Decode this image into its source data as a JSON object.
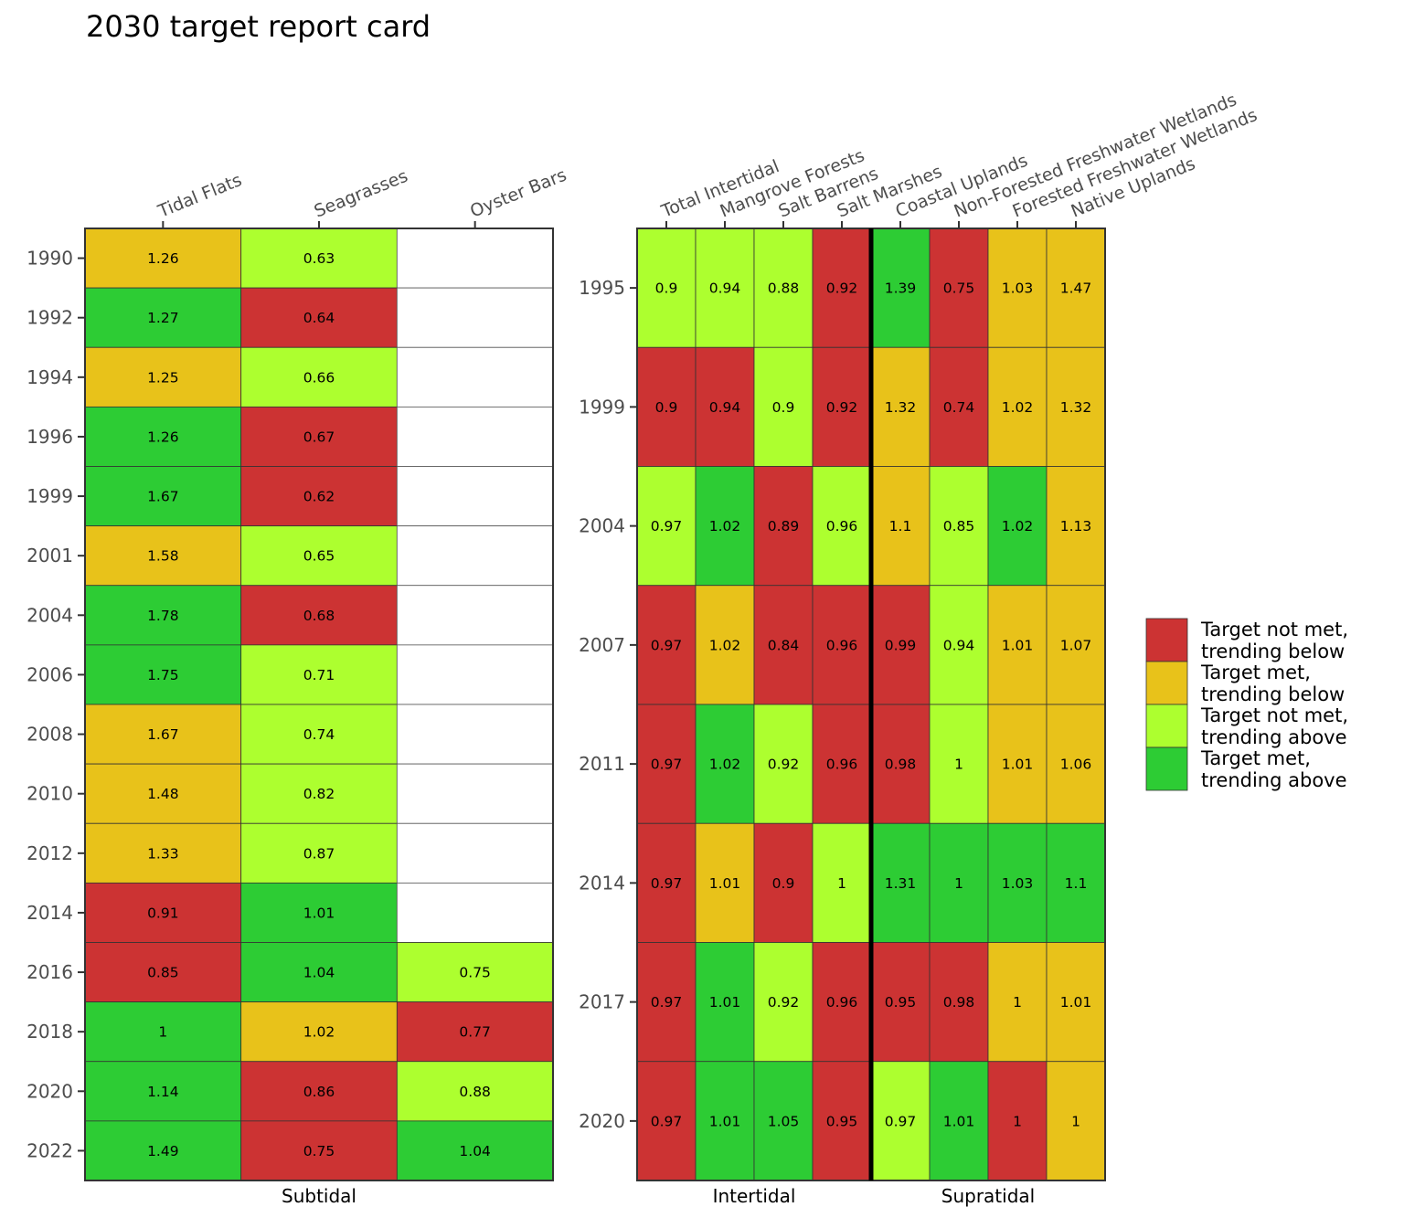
{
  "chart_data": {
    "type": "heatmap",
    "title": "2030 target report card",
    "status_colors": {
      "Target not met, trending below": "#cc3333",
      "Target met, trending below": "#e8c21a",
      "Target not met, trending above": "#adff2f",
      "Target met, trending above": "#2dcc34"
    },
    "legend": {
      "position": "right",
      "entries": [
        {
          "label_line1": "Target not met,",
          "label_line2": "trending below",
          "color": "#cc3333"
        },
        {
          "label_line1": "Target met,",
          "label_line2": "trending below",
          "color": "#e8c21a"
        },
        {
          "label_line1": "Target not met,",
          "label_line2": "trending above",
          "color": "#adff2f"
        },
        {
          "label_line1": "Target met,",
          "label_line2": "trending above",
          "color": "#2dcc34"
        }
      ]
    },
    "panels": [
      {
        "id": "subtidal",
        "xlabel": "Subtidal",
        "groups": [],
        "columns": [
          "Tidal Flats",
          "Seagrasses",
          "Oyster Bars"
        ],
        "rows": [
          "1990",
          "1992",
          "1994",
          "1996",
          "1999",
          "2001",
          "2004",
          "2006",
          "2008",
          "2010",
          "2012",
          "2014",
          "2016",
          "2018",
          "2020",
          "2022"
        ],
        "cells": [
          [
            {
              "v": "1.26",
              "c": "#e8c21a"
            },
            {
              "v": "0.63",
              "c": "#adff2f"
            },
            null
          ],
          [
            {
              "v": "1.27",
              "c": "#2dcc34"
            },
            {
              "v": "0.64",
              "c": "#cc3333"
            },
            null
          ],
          [
            {
              "v": "1.25",
              "c": "#e8c21a"
            },
            {
              "v": "0.66",
              "c": "#adff2f"
            },
            null
          ],
          [
            {
              "v": "1.26",
              "c": "#2dcc34"
            },
            {
              "v": "0.67",
              "c": "#cc3333"
            },
            null
          ],
          [
            {
              "v": "1.67",
              "c": "#2dcc34"
            },
            {
              "v": "0.62",
              "c": "#cc3333"
            },
            null
          ],
          [
            {
              "v": "1.58",
              "c": "#e8c21a"
            },
            {
              "v": "0.65",
              "c": "#adff2f"
            },
            null
          ],
          [
            {
              "v": "1.78",
              "c": "#2dcc34"
            },
            {
              "v": "0.68",
              "c": "#cc3333"
            },
            null
          ],
          [
            {
              "v": "1.75",
              "c": "#2dcc34"
            },
            {
              "v": "0.71",
              "c": "#adff2f"
            },
            null
          ],
          [
            {
              "v": "1.67",
              "c": "#e8c21a"
            },
            {
              "v": "0.74",
              "c": "#adff2f"
            },
            null
          ],
          [
            {
              "v": "1.48",
              "c": "#e8c21a"
            },
            {
              "v": "0.82",
              "c": "#adff2f"
            },
            null
          ],
          [
            {
              "v": "1.33",
              "c": "#e8c21a"
            },
            {
              "v": "0.87",
              "c": "#adff2f"
            },
            null
          ],
          [
            {
              "v": "0.91",
              "c": "#cc3333"
            },
            {
              "v": "1.01",
              "c": "#2dcc34"
            },
            null
          ],
          [
            {
              "v": "0.85",
              "c": "#cc3333"
            },
            {
              "v": "1.04",
              "c": "#2dcc34"
            },
            {
              "v": "0.75",
              "c": "#adff2f"
            }
          ],
          [
            {
              "v": "1",
              "c": "#2dcc34"
            },
            {
              "v": "1.02",
              "c": "#e8c21a"
            },
            {
              "v": "0.77",
              "c": "#cc3333"
            }
          ],
          [
            {
              "v": "1.14",
              "c": "#2dcc34"
            },
            {
              "v": "0.86",
              "c": "#cc3333"
            },
            {
              "v": "0.88",
              "c": "#adff2f"
            }
          ],
          [
            {
              "v": "1.49",
              "c": "#2dcc34"
            },
            {
              "v": "0.75",
              "c": "#cc3333"
            },
            {
              "v": "1.04",
              "c": "#2dcc34"
            }
          ]
        ]
      },
      {
        "id": "intertidal-supratidal",
        "xlabel": "",
        "groups": [
          {
            "label": "Intertidal",
            "span": 4
          },
          {
            "label": "Supratidal",
            "span": 4
          }
        ],
        "columns": [
          "Total Intertidal",
          "Mangrove Forests",
          "Salt Barrens",
          "Salt Marshes",
          "Coastal Uplands",
          "Non-Forested Freshwater Wetlands",
          "Forested Freshwater Wetlands",
          "Native Uplands"
        ],
        "rows": [
          "1995",
          "1999",
          "2004",
          "2007",
          "2011",
          "2014",
          "2017",
          "2020"
        ],
        "cells": [
          [
            {
              "v": "0.9",
              "c": "#adff2f"
            },
            {
              "v": "0.94",
              "c": "#adff2f"
            },
            {
              "v": "0.88",
              "c": "#adff2f"
            },
            {
              "v": "0.92",
              "c": "#cc3333"
            },
            {
              "v": "1.39",
              "c": "#2dcc34"
            },
            {
              "v": "0.75",
              "c": "#cc3333"
            },
            {
              "v": "1.03",
              "c": "#e8c21a"
            },
            {
              "v": "1.47",
              "c": "#e8c21a"
            }
          ],
          [
            {
              "v": "0.9",
              "c": "#cc3333"
            },
            {
              "v": "0.94",
              "c": "#cc3333"
            },
            {
              "v": "0.9",
              "c": "#adff2f"
            },
            {
              "v": "0.92",
              "c": "#cc3333"
            },
            {
              "v": "1.32",
              "c": "#e8c21a"
            },
            {
              "v": "0.74",
              "c": "#cc3333"
            },
            {
              "v": "1.02",
              "c": "#e8c21a"
            },
            {
              "v": "1.32",
              "c": "#e8c21a"
            }
          ],
          [
            {
              "v": "0.97",
              "c": "#adff2f"
            },
            {
              "v": "1.02",
              "c": "#2dcc34"
            },
            {
              "v": "0.89",
              "c": "#cc3333"
            },
            {
              "v": "0.96",
              "c": "#adff2f"
            },
            {
              "v": "1.1",
              "c": "#e8c21a"
            },
            {
              "v": "0.85",
              "c": "#adff2f"
            },
            {
              "v": "1.02",
              "c": "#2dcc34"
            },
            {
              "v": "1.13",
              "c": "#e8c21a"
            }
          ],
          [
            {
              "v": "0.97",
              "c": "#cc3333"
            },
            {
              "v": "1.02",
              "c": "#e8c21a"
            },
            {
              "v": "0.84",
              "c": "#cc3333"
            },
            {
              "v": "0.96",
              "c": "#cc3333"
            },
            {
              "v": "0.99",
              "c": "#cc3333"
            },
            {
              "v": "0.94",
              "c": "#adff2f"
            },
            {
              "v": "1.01",
              "c": "#e8c21a"
            },
            {
              "v": "1.07",
              "c": "#e8c21a"
            }
          ],
          [
            {
              "v": "0.97",
              "c": "#cc3333"
            },
            {
              "v": "1.02",
              "c": "#2dcc34"
            },
            {
              "v": "0.92",
              "c": "#adff2f"
            },
            {
              "v": "0.96",
              "c": "#cc3333"
            },
            {
              "v": "0.98",
              "c": "#cc3333"
            },
            {
              "v": "1",
              "c": "#adff2f"
            },
            {
              "v": "1.01",
              "c": "#e8c21a"
            },
            {
              "v": "1.06",
              "c": "#e8c21a"
            }
          ],
          [
            {
              "v": "0.97",
              "c": "#cc3333"
            },
            {
              "v": "1.01",
              "c": "#e8c21a"
            },
            {
              "v": "0.9",
              "c": "#cc3333"
            },
            {
              "v": "1",
              "c": "#adff2f"
            },
            {
              "v": "1.31",
              "c": "#2dcc34"
            },
            {
              "v": "1",
              "c": "#2dcc34"
            },
            {
              "v": "1.03",
              "c": "#2dcc34"
            },
            {
              "v": "1.1",
              "c": "#2dcc34"
            }
          ],
          [
            {
              "v": "0.97",
              "c": "#cc3333"
            },
            {
              "v": "1.01",
              "c": "#2dcc34"
            },
            {
              "v": "0.92",
              "c": "#adff2f"
            },
            {
              "v": "0.96",
              "c": "#cc3333"
            },
            {
              "v": "0.95",
              "c": "#cc3333"
            },
            {
              "v": "0.98",
              "c": "#cc3333"
            },
            {
              "v": "1",
              "c": "#e8c21a"
            },
            {
              "v": "1.01",
              "c": "#e8c21a"
            }
          ],
          [
            {
              "v": "0.97",
              "c": "#cc3333"
            },
            {
              "v": "1.01",
              "c": "#2dcc34"
            },
            {
              "v": "1.05",
              "c": "#2dcc34"
            },
            {
              "v": "0.95",
              "c": "#cc3333"
            },
            {
              "v": "0.97",
              "c": "#adff2f"
            },
            {
              "v": "1.01",
              "c": "#2dcc34"
            },
            {
              "v": "1",
              "c": "#cc3333"
            },
            {
              "v": "1",
              "c": "#e8c21a"
            }
          ]
        ]
      }
    ]
  }
}
